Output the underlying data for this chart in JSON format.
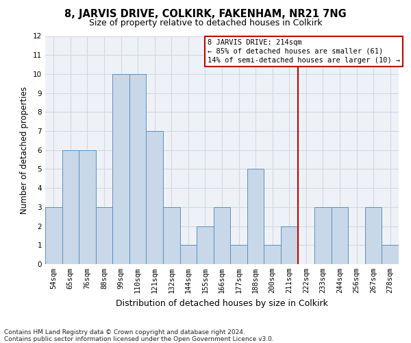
{
  "title1": "8, JARVIS DRIVE, COLKIRK, FAKENHAM, NR21 7NG",
  "title2": "Size of property relative to detached houses in Colkirk",
  "xlabel": "Distribution of detached houses by size in Colkirk",
  "ylabel": "Number of detached properties",
  "categories": [
    "54sqm",
    "65sqm",
    "76sqm",
    "88sqm",
    "99sqm",
    "110sqm",
    "121sqm",
    "132sqm",
    "144sqm",
    "155sqm",
    "166sqm",
    "177sqm",
    "188sqm",
    "200sqm",
    "211sqm",
    "222sqm",
    "233sqm",
    "244sqm",
    "256sqm",
    "267sqm",
    "278sqm"
  ],
  "values": [
    3,
    6,
    6,
    3,
    10,
    10,
    7,
    3,
    1,
    2,
    3,
    1,
    5,
    1,
    2,
    0,
    3,
    3,
    0,
    3,
    1
  ],
  "bar_color": "#c8d8e8",
  "bar_edge_color": "#5a8fc0",
  "vline_x_index": 14.5,
  "vline_color": "#c00000",
  "ylim": [
    0,
    12
  ],
  "yticks": [
    0,
    1,
    2,
    3,
    4,
    5,
    6,
    7,
    8,
    9,
    10,
    11,
    12
  ],
  "annotation_line1": "8 JARVIS DRIVE: 214sqm",
  "annotation_line2": "← 85% of detached houses are smaller (61)",
  "annotation_line3": "14% of semi-detached houses are larger (10) →",
  "annotation_box_color": "#c00000",
  "footer1": "Contains HM Land Registry data © Crown copyright and database right 2024.",
  "footer2": "Contains public sector information licensed under the Open Government Licence v3.0.",
  "bg_color": "#eef2f7",
  "grid_color": "#d0d8e4",
  "title1_fontsize": 10.5,
  "title2_fontsize": 9,
  "ylabel_fontsize": 8.5,
  "xlabel_fontsize": 9,
  "tick_fontsize": 7.5,
  "footer_fontsize": 6.5,
  "annot_fontsize": 7.5
}
